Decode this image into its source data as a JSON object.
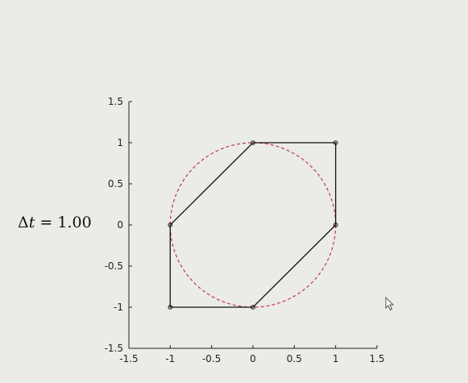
{
  "annotation": {
    "delta": "Δ",
    "variable": "t",
    "equals": " = ",
    "value": "1.00"
  },
  "chart_data": {
    "type": "line",
    "title": "",
    "xlabel": "",
    "ylabel": "",
    "xlim": [
      -1.5,
      1.5
    ],
    "ylim": [
      -1.5,
      1.5
    ],
    "grid": false,
    "x_ticks": [
      -1.5,
      -1,
      -0.5,
      0,
      0.5,
      1,
      1.5
    ],
    "y_ticks": [
      -1.5,
      -1,
      -0.5,
      0,
      0.5,
      1,
      1.5
    ],
    "x_tick_labels": [
      "-1.5",
      "-1",
      "-0.5",
      "0",
      "0.5",
      "1",
      "1.5"
    ],
    "y_tick_labels": [
      "-1.5",
      "-1",
      "-0.5",
      "0",
      "0.5",
      "1",
      "1.5"
    ],
    "series": [
      {
        "style": "dashed-circle",
        "color": "#c23a44",
        "center": [
          0,
          0
        ],
        "radius": 1
      },
      {
        "style": "solid-line-markers",
        "color": "#111111",
        "closed": true,
        "points": [
          [
            0,
            1
          ],
          [
            1,
            1
          ],
          [
            1,
            0
          ],
          [
            0,
            -1
          ],
          [
            -1,
            -1
          ],
          [
            -1,
            0
          ]
        ]
      }
    ]
  }
}
